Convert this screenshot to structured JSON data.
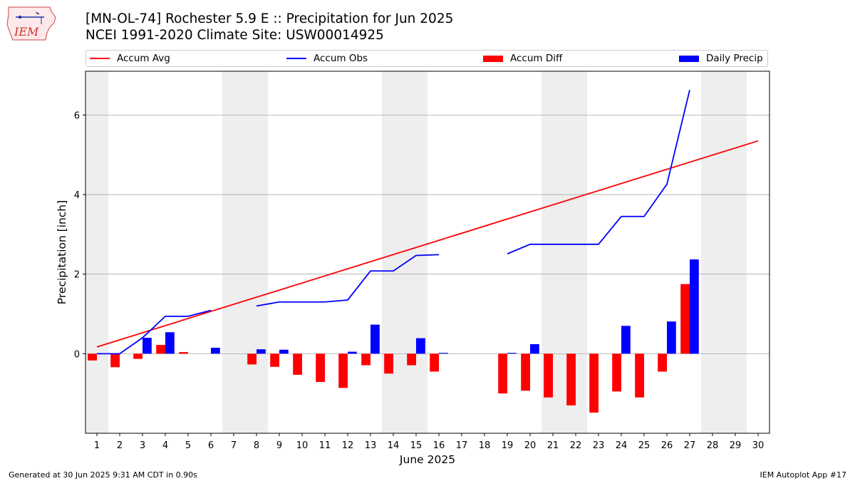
{
  "header": {
    "title_line1": "[MN-OL-74] Rochester 5.9 E :: Precipitation for Jun 2025",
    "title_line2": "NCEI 1991-2020 Climate Site: USW00014925",
    "logo_text": "IEM"
  },
  "legend": {
    "accum_avg": "Accum Avg",
    "accum_obs": "Accum Obs",
    "accum_diff": "Accum Diff",
    "daily_precip": "Daily Precip"
  },
  "footer": {
    "left": "Generated at 30 Jun 2025 9:31 AM CDT in 0.90s",
    "right": "IEM Autoplot App #17"
  },
  "colors": {
    "avg": "#ff0000",
    "obs": "#0000ff",
    "diff": "#ff0000",
    "precip": "#0000ff",
    "weekend": "#eeeeee",
    "grid": "#aaaaaa"
  },
  "chart_data": {
    "type": "bar",
    "xlabel": "June 2025",
    "ylabel": "Precipitation [inch]",
    "xlim": [
      0.5,
      30.5
    ],
    "ylim": [
      -2.0,
      7.1
    ],
    "yticks": [
      0,
      2,
      4,
      6
    ],
    "xticks": [
      1,
      2,
      3,
      4,
      5,
      6,
      7,
      8,
      9,
      10,
      11,
      12,
      13,
      14,
      15,
      16,
      17,
      18,
      19,
      20,
      21,
      22,
      23,
      24,
      25,
      26,
      27,
      28,
      29,
      30
    ],
    "weekend_days": [
      1,
      7,
      8,
      14,
      15,
      21,
      22,
      28,
      29
    ],
    "grid": true,
    "legend_position": "top",
    "series": [
      {
        "name": "Accum Avg",
        "kind": "line",
        "days": [
          1,
          30
        ],
        "values": [
          0.17,
          5.35
        ]
      },
      {
        "name": "Accum Obs",
        "kind": "line",
        "days": [
          1,
          2,
          3,
          4,
          5,
          6,
          7,
          8,
          9,
          10,
          11,
          12,
          13,
          14,
          15,
          16,
          17,
          18,
          19,
          20,
          21,
          22,
          23,
          24,
          25,
          26,
          27
        ],
        "values": [
          0.0,
          0.0,
          0.4,
          0.94,
          0.94,
          1.09,
          null,
          1.2,
          1.3,
          1.3,
          1.3,
          1.35,
          2.08,
          2.08,
          2.47,
          2.49,
          null,
          null,
          2.51,
          2.75,
          2.75,
          2.75,
          2.75,
          3.45,
          3.45,
          4.26,
          6.63
        ]
      },
      {
        "name": "Accum Diff",
        "kind": "bar",
        "days": [
          1,
          2,
          3,
          4,
          5,
          8,
          9,
          10,
          11,
          12,
          13,
          14,
          15,
          16,
          19,
          20,
          21,
          22,
          23,
          24,
          25,
          26,
          27
        ],
        "values": [
          -0.17,
          -0.34,
          -0.13,
          0.22,
          0.04,
          -0.27,
          -0.33,
          -0.53,
          -0.71,
          -0.86,
          -0.29,
          -0.5,
          -0.29,
          -0.45,
          -1.0,
          -0.93,
          -1.1,
          -1.3,
          -1.48,
          -0.95,
          -1.1,
          -0.45,
          1.75
        ]
      },
      {
        "name": "Daily Precip",
        "kind": "bar",
        "days": [
          3,
          4,
          6,
          8,
          9,
          12,
          13,
          15,
          16,
          19,
          20,
          24,
          26,
          27
        ],
        "values": [
          0.4,
          0.54,
          0.15,
          0.11,
          0.1,
          0.05,
          0.73,
          0.39,
          0.02,
          0.02,
          0.24,
          0.7,
          0.81,
          2.37
        ]
      }
    ]
  }
}
